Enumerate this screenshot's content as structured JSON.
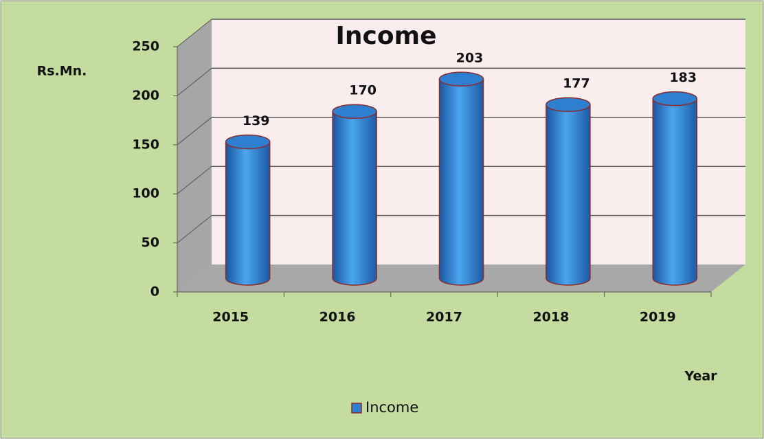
{
  "chart_data": {
    "type": "cylinder",
    "title": "Income",
    "y_label": "Rs.Mn.",
    "x_label": "Year",
    "categories": [
      "2015",
      "2016",
      "2017",
      "2018",
      "2019"
    ],
    "series": [
      {
        "name": "Income",
        "color": "#2f7fd0",
        "values": [
          139,
          170,
          203,
          177,
          183
        ]
      }
    ],
    "ylim": [
      0,
      250
    ],
    "yticks": [
      0,
      50,
      100,
      150,
      200,
      250
    ],
    "grid": true,
    "legend": "bottom"
  }
}
